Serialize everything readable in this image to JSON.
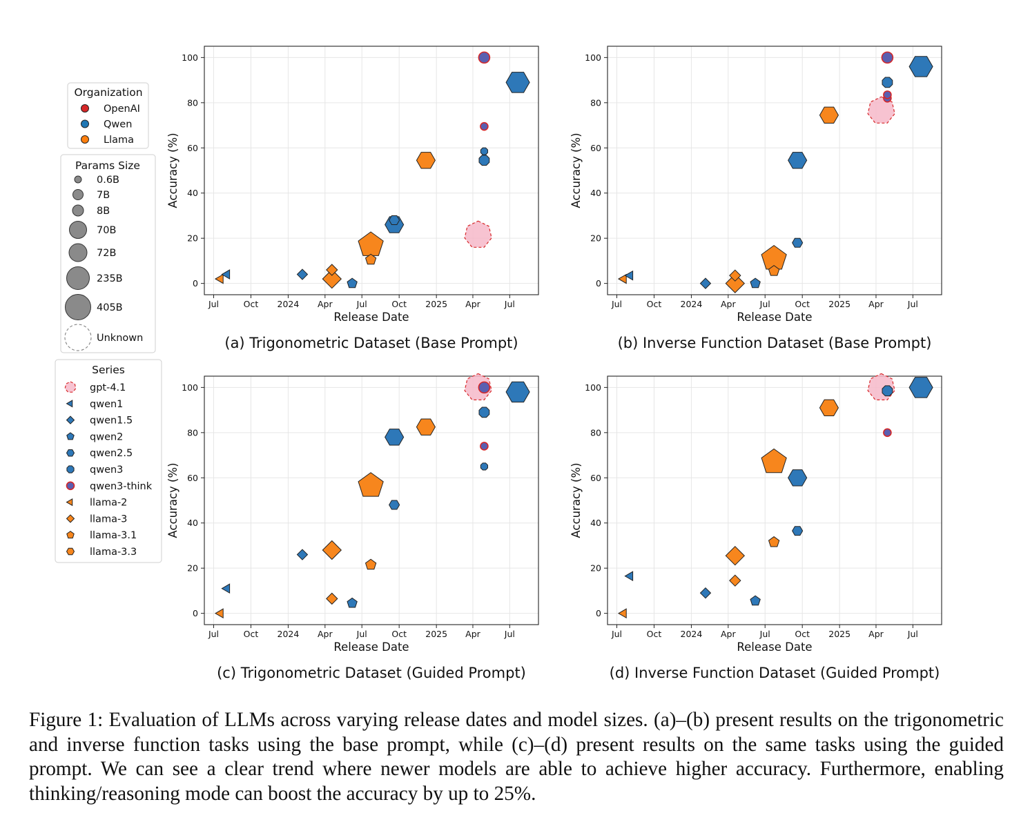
{
  "figure": {
    "caption": "Figure 1: Evaluation of LLMs across varying release dates and model sizes. (a)–(b) present results on the trigonometric and inverse function tasks using the base prompt, while (c)–(d) present results on the same tasks using the guided prompt. We can see a clear trend where newer models are able to achieve higher accuracy. Furthermore, enabling thinking/reasoning mode can boost the accuracy by up to 25%."
  },
  "legend": {
    "organization": {
      "title": "Organization",
      "items": [
        {
          "label": "OpenAI",
          "color": "#d62728"
        },
        {
          "label": "Qwen",
          "color": "#1f77b4"
        },
        {
          "label": "Llama",
          "color": "#ff7f0e"
        }
      ]
    },
    "params": {
      "title": "Params Size",
      "items": [
        {
          "label": "0.6B"
        },
        {
          "label": "7B"
        },
        {
          "label": "8B"
        },
        {
          "label": "70B"
        },
        {
          "label": "72B"
        },
        {
          "label": "235B"
        },
        {
          "label": "405B"
        },
        {
          "label": "Unknown"
        }
      ]
    },
    "series": {
      "title": "Series",
      "items": [
        {
          "label": "gpt-4.1",
          "marker": "heptagon",
          "color": "#f6b8c9",
          "dashed": true
        },
        {
          "label": "qwen1",
          "marker": "triangle-left",
          "color": "#2e78b8"
        },
        {
          "label": "qwen1.5",
          "marker": "diamond",
          "color": "#2e78b8"
        },
        {
          "label": "qwen2",
          "marker": "pentagon",
          "color": "#2e78b8"
        },
        {
          "label": "qwen2.5",
          "marker": "hexagon",
          "color": "#2e78b8"
        },
        {
          "label": "qwen3",
          "marker": "octagon",
          "color": "#2e78b8"
        },
        {
          "label": "qwen3-think",
          "marker": "circle",
          "color": "#5a5fb0"
        },
        {
          "label": "llama-2",
          "marker": "triangle-left",
          "color": "#f7861d"
        },
        {
          "label": "llama-3",
          "marker": "diamond",
          "color": "#f7861d"
        },
        {
          "label": "llama-3.1",
          "marker": "pentagon",
          "color": "#f7861d"
        },
        {
          "label": "llama-3.3",
          "marker": "hexagon",
          "color": "#f7861d"
        }
      ]
    }
  },
  "chart_data": [
    {
      "type": "scatter",
      "title": "(a) Trigonometric Dataset (Base Prompt)",
      "xlabel": "Release Date",
      "ylabel": "Accuracy (%)",
      "xlim": [
        "2023-06-08",
        "2025-09-10"
      ],
      "ylim": [
        -5,
        105
      ],
      "xticks": [
        {
          "date": "2023-07-01",
          "label": "Jul"
        },
        {
          "date": "2023-10-01",
          "label": "Oct"
        },
        {
          "date": "2024-01-01",
          "label": "2024"
        },
        {
          "date": "2024-04-01",
          "label": "Apr"
        },
        {
          "date": "2024-07-01",
          "label": "Jul"
        },
        {
          "date": "2024-10-01",
          "label": "Oct"
        },
        {
          "date": "2025-01-01",
          "label": "2025"
        },
        {
          "date": "2025-04-01",
          "label": "Apr"
        },
        {
          "date": "2025-07-01",
          "label": "Jul"
        }
      ],
      "yticks": [
        0,
        20,
        40,
        60,
        80,
        100
      ],
      "grid": true,
      "points": [
        {
          "series": "llama-2",
          "params": "7B",
          "date": "2023-07-18",
          "y": 2
        },
        {
          "series": "qwen1",
          "params": "7B",
          "date": "2023-08-03",
          "y": 4
        },
        {
          "series": "qwen1.5",
          "params": "7B",
          "date": "2024-02-05",
          "y": 4
        },
        {
          "series": "llama-3",
          "params": "8B",
          "date": "2024-04-18",
          "y": 6
        },
        {
          "series": "llama-3",
          "params": "70B",
          "date": "2024-04-18",
          "y": 2
        },
        {
          "series": "qwen2",
          "params": "7B",
          "date": "2024-06-07",
          "y": 0
        },
        {
          "series": "llama-3.1",
          "params": "405B",
          "date": "2024-07-23",
          "y": 17
        },
        {
          "series": "llama-3.1",
          "params": "8B",
          "date": "2024-07-23",
          "y": 10.5
        },
        {
          "series": "qwen2.5",
          "params": "72B",
          "date": "2024-09-19",
          "y": 26
        },
        {
          "series": "qwen2.5",
          "params": "7B",
          "date": "2024-09-19",
          "y": 28
        },
        {
          "series": "llama-3.3",
          "params": "70B",
          "date": "2024-12-06",
          "y": 54.5
        },
        {
          "series": "gpt-4.1",
          "params": "Unknown",
          "date": "2025-04-14",
          "y": 21.5
        },
        {
          "series": "qwen3",
          "params": "8B",
          "date": "2025-04-29",
          "y": 54.5
        },
        {
          "series": "qwen3",
          "params": "0.6B",
          "date": "2025-04-29",
          "y": 58.5
        },
        {
          "series": "qwen3-think",
          "params": "0.6B",
          "date": "2025-04-29",
          "y": 69.5
        },
        {
          "series": "qwen3-think",
          "params": "8B",
          "date": "2025-04-29",
          "y": 100
        },
        {
          "series": "qwen2.5",
          "params": "235B",
          "date": "2025-07-21",
          "y": 89
        }
      ]
    },
    {
      "type": "scatter",
      "title": "(b) Inverse Function Dataset (Base Prompt)",
      "xlabel": "Release Date",
      "ylabel": "Accuracy (%)",
      "xlim": [
        "2023-06-08",
        "2025-09-10"
      ],
      "ylim": [
        -5,
        105
      ],
      "xticks": [
        {
          "date": "2023-07-01",
          "label": "Jul"
        },
        {
          "date": "2023-10-01",
          "label": "Oct"
        },
        {
          "date": "2024-01-01",
          "label": "2024"
        },
        {
          "date": "2024-04-01",
          "label": "Apr"
        },
        {
          "date": "2024-07-01",
          "label": "Jul"
        },
        {
          "date": "2024-10-01",
          "label": "Oct"
        },
        {
          "date": "2025-01-01",
          "label": "2025"
        },
        {
          "date": "2025-04-01",
          "label": "Apr"
        },
        {
          "date": "2025-07-01",
          "label": "Jul"
        }
      ],
      "yticks": [
        0,
        20,
        40,
        60,
        80,
        100
      ],
      "grid": true,
      "points": [
        {
          "series": "llama-2",
          "params": "7B",
          "date": "2023-07-18",
          "y": 2
        },
        {
          "series": "qwen1",
          "params": "7B",
          "date": "2023-08-03",
          "y": 3.5
        },
        {
          "series": "qwen1.5",
          "params": "7B",
          "date": "2024-02-05",
          "y": 0
        },
        {
          "series": "llama-3",
          "params": "8B",
          "date": "2024-04-18",
          "y": 3.5
        },
        {
          "series": "llama-3",
          "params": "70B",
          "date": "2024-04-18",
          "y": 0
        },
        {
          "series": "qwen2",
          "params": "7B",
          "date": "2024-06-07",
          "y": 0
        },
        {
          "series": "llama-3.1",
          "params": "8B",
          "date": "2024-07-23",
          "y": 5.5
        },
        {
          "series": "llama-3.1",
          "params": "405B",
          "date": "2024-07-23",
          "y": 11
        },
        {
          "series": "qwen2.5",
          "params": "7B",
          "date": "2024-09-19",
          "y": 18
        },
        {
          "series": "qwen2.5",
          "params": "72B",
          "date": "2024-09-19",
          "y": 54.5
        },
        {
          "series": "llama-3.3",
          "params": "70B",
          "date": "2024-12-06",
          "y": 74.5
        },
        {
          "series": "gpt-4.1",
          "params": "Unknown",
          "date": "2025-04-14",
          "y": 76.5
        },
        {
          "series": "qwen3-think",
          "params": "0.6B",
          "date": "2025-04-29",
          "y": 82
        },
        {
          "series": "qwen3-think",
          "params": "0.6B",
          "date": "2025-04-29",
          "y": 83.5
        },
        {
          "series": "qwen3",
          "params": "8B",
          "date": "2025-04-29",
          "y": 89
        },
        {
          "series": "qwen3-think",
          "params": "8B",
          "date": "2025-04-29",
          "y": 100
        },
        {
          "series": "qwen2.5",
          "params": "235B",
          "date": "2025-07-21",
          "y": 96
        }
      ]
    },
    {
      "type": "scatter",
      "title": "(c) Trigonometric Dataset (Guided Prompt)",
      "xlabel": "Release Date",
      "ylabel": "Accuracy (%)",
      "xlim": [
        "2023-06-08",
        "2025-09-10"
      ],
      "ylim": [
        -5,
        105
      ],
      "xticks": [
        {
          "date": "2023-07-01",
          "label": "Jul"
        },
        {
          "date": "2023-10-01",
          "label": "Oct"
        },
        {
          "date": "2024-01-01",
          "label": "2024"
        },
        {
          "date": "2024-04-01",
          "label": "Apr"
        },
        {
          "date": "2024-07-01",
          "label": "Jul"
        },
        {
          "date": "2024-10-01",
          "label": "Oct"
        },
        {
          "date": "2025-01-01",
          "label": "2025"
        },
        {
          "date": "2025-04-01",
          "label": "Apr"
        },
        {
          "date": "2025-07-01",
          "label": "Jul"
        }
      ],
      "yticks": [
        0,
        20,
        40,
        60,
        80,
        100
      ],
      "grid": true,
      "points": [
        {
          "series": "llama-2",
          "params": "7B",
          "date": "2023-07-18",
          "y": 0
        },
        {
          "series": "qwen1",
          "params": "7B",
          "date": "2023-08-03",
          "y": 11
        },
        {
          "series": "qwen1.5",
          "params": "7B",
          "date": "2024-02-05",
          "y": 26
        },
        {
          "series": "llama-3",
          "params": "70B",
          "date": "2024-04-18",
          "y": 28
        },
        {
          "series": "llama-3",
          "params": "8B",
          "date": "2024-04-18",
          "y": 6.5
        },
        {
          "series": "qwen2",
          "params": "7B",
          "date": "2024-06-07",
          "y": 4.5
        },
        {
          "series": "llama-3.1",
          "params": "405B",
          "date": "2024-07-23",
          "y": 56.5
        },
        {
          "series": "llama-3.1",
          "params": "8B",
          "date": "2024-07-23",
          "y": 21.5
        },
        {
          "series": "qwen2.5",
          "params": "72B",
          "date": "2024-09-19",
          "y": 78
        },
        {
          "series": "qwen2.5",
          "params": "7B",
          "date": "2024-09-19",
          "y": 48
        },
        {
          "series": "llama-3.3",
          "params": "70B",
          "date": "2024-12-06",
          "y": 82.5
        },
        {
          "series": "gpt-4.1",
          "params": "Unknown",
          "date": "2025-04-14",
          "y": 100
        },
        {
          "series": "qwen3-think",
          "params": "8B",
          "date": "2025-04-29",
          "y": 100
        },
        {
          "series": "qwen3",
          "params": "8B",
          "date": "2025-04-29",
          "y": 89
        },
        {
          "series": "qwen3-think",
          "params": "0.6B",
          "date": "2025-04-29",
          "y": 74
        },
        {
          "series": "qwen3",
          "params": "0.6B",
          "date": "2025-04-29",
          "y": 65
        },
        {
          "series": "qwen2.5",
          "params": "235B",
          "date": "2025-07-21",
          "y": 98
        }
      ]
    },
    {
      "type": "scatter",
      "title": "(d) Inverse Function Dataset (Guided Prompt)",
      "xlabel": "Release Date",
      "ylabel": "Accuracy (%)",
      "xlim": [
        "2023-06-08",
        "2025-09-10"
      ],
      "ylim": [
        -5,
        105
      ],
      "xticks": [
        {
          "date": "2023-07-01",
          "label": "Jul"
        },
        {
          "date": "2023-10-01",
          "label": "Oct"
        },
        {
          "date": "2024-01-01",
          "label": "2024"
        },
        {
          "date": "2024-04-01",
          "label": "Apr"
        },
        {
          "date": "2024-07-01",
          "label": "Jul"
        },
        {
          "date": "2024-10-01",
          "label": "Oct"
        },
        {
          "date": "2025-01-01",
          "label": "2025"
        },
        {
          "date": "2025-04-01",
          "label": "Apr"
        },
        {
          "date": "2025-07-01",
          "label": "Jul"
        }
      ],
      "yticks": [
        0,
        20,
        40,
        60,
        80,
        100
      ],
      "grid": true,
      "points": [
        {
          "series": "llama-2",
          "params": "7B",
          "date": "2023-07-18",
          "y": 0
        },
        {
          "series": "qwen1",
          "params": "7B",
          "date": "2023-08-03",
          "y": 16.5
        },
        {
          "series": "qwen1.5",
          "params": "7B",
          "date": "2024-02-05",
          "y": 9
        },
        {
          "series": "llama-3",
          "params": "70B",
          "date": "2024-04-18",
          "y": 25.5
        },
        {
          "series": "llama-3",
          "params": "8B",
          "date": "2024-04-18",
          "y": 14.5
        },
        {
          "series": "qwen2",
          "params": "7B",
          "date": "2024-06-07",
          "y": 5.5
        },
        {
          "series": "llama-3.1",
          "params": "405B",
          "date": "2024-07-23",
          "y": 67
        },
        {
          "series": "llama-3.1",
          "params": "8B",
          "date": "2024-07-23",
          "y": 31.5
        },
        {
          "series": "qwen2.5",
          "params": "72B",
          "date": "2024-09-19",
          "y": 60
        },
        {
          "series": "qwen2.5",
          "params": "7B",
          "date": "2024-09-19",
          "y": 36.5
        },
        {
          "series": "llama-3.3",
          "params": "70B",
          "date": "2024-12-06",
          "y": 91
        },
        {
          "series": "gpt-4.1",
          "params": "Unknown",
          "date": "2025-04-14",
          "y": 100
        },
        {
          "series": "qwen3",
          "params": "8B",
          "date": "2025-04-29",
          "y": 98.5
        },
        {
          "series": "qwen3-think",
          "params": "0.6B",
          "date": "2025-04-29",
          "y": 80
        },
        {
          "series": "qwen2.5",
          "params": "235B",
          "date": "2025-07-21",
          "y": 100
        }
      ]
    }
  ]
}
